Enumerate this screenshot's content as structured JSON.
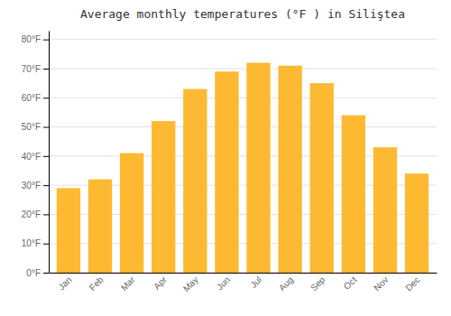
{
  "chart_data": {
    "type": "bar",
    "title": "Average monthly temperatures (°F ) in Siliştea",
    "categories": [
      "Jan",
      "Feb",
      "Mar",
      "Apr",
      "May",
      "Jun",
      "Jul",
      "Aug",
      "Sep",
      "Oct",
      "Nov",
      "Dec"
    ],
    "values": [
      29,
      32,
      41,
      52,
      63,
      69,
      72,
      71,
      65,
      54,
      43,
      34
    ],
    "color": "#FDB931",
    "ylim": [
      0,
      83
    ],
    "yticks": [
      {
        "value": 0,
        "label": "0°F"
      },
      {
        "value": 10,
        "label": "10°F"
      },
      {
        "value": 20,
        "label": "20°F"
      },
      {
        "value": 30,
        "label": "30°F"
      },
      {
        "value": 40,
        "label": "40°F"
      },
      {
        "value": 50,
        "label": "50°F"
      },
      {
        "value": 60,
        "label": "60°F"
      },
      {
        "value": 70,
        "label": "70°F"
      },
      {
        "value": 80,
        "label": "80°F"
      }
    ],
    "grid": true
  }
}
